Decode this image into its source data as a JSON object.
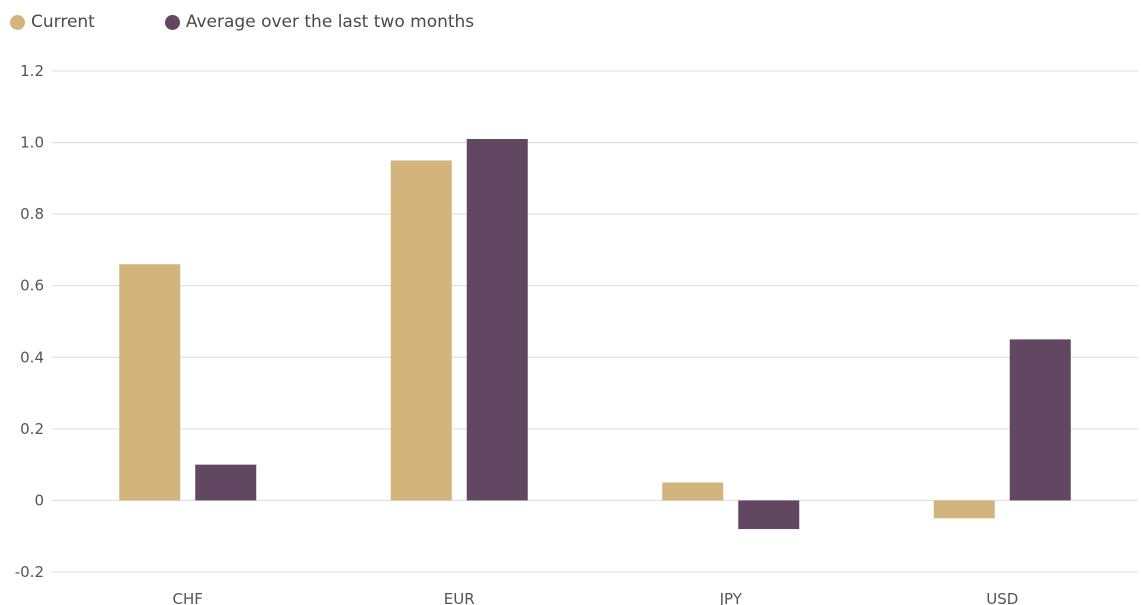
{
  "legend": {
    "series": [
      {
        "name": "Current",
        "color": "#d3b47c"
      },
      {
        "name": "Average over the last two months",
        "color": "#614761"
      }
    ]
  },
  "chart_data": {
    "type": "bar",
    "categories": [
      "CHF",
      "EUR",
      "JPY",
      "USD"
    ],
    "series": [
      {
        "name": "Current",
        "values": [
          0.66,
          0.95,
          0.05,
          -0.05
        ],
        "color": "#d3b47c"
      },
      {
        "name": "Average over the last two months",
        "values": [
          0.1,
          1.01,
          -0.08,
          0.45
        ],
        "color": "#614761"
      }
    ],
    "ylim": [
      -0.2,
      1.2
    ],
    "yticks": [
      -0.2,
      0,
      0.2,
      0.4,
      0.6,
      0.8,
      1.0,
      1.2
    ],
    "ytick_labels": [
      "-0.2",
      "0",
      "0.2",
      "0.4",
      "0.6",
      "0.8",
      "1.0",
      "1.2"
    ],
    "grid": true,
    "legend_position": "top-left",
    "title": "",
    "xlabel": "",
    "ylabel": ""
  }
}
